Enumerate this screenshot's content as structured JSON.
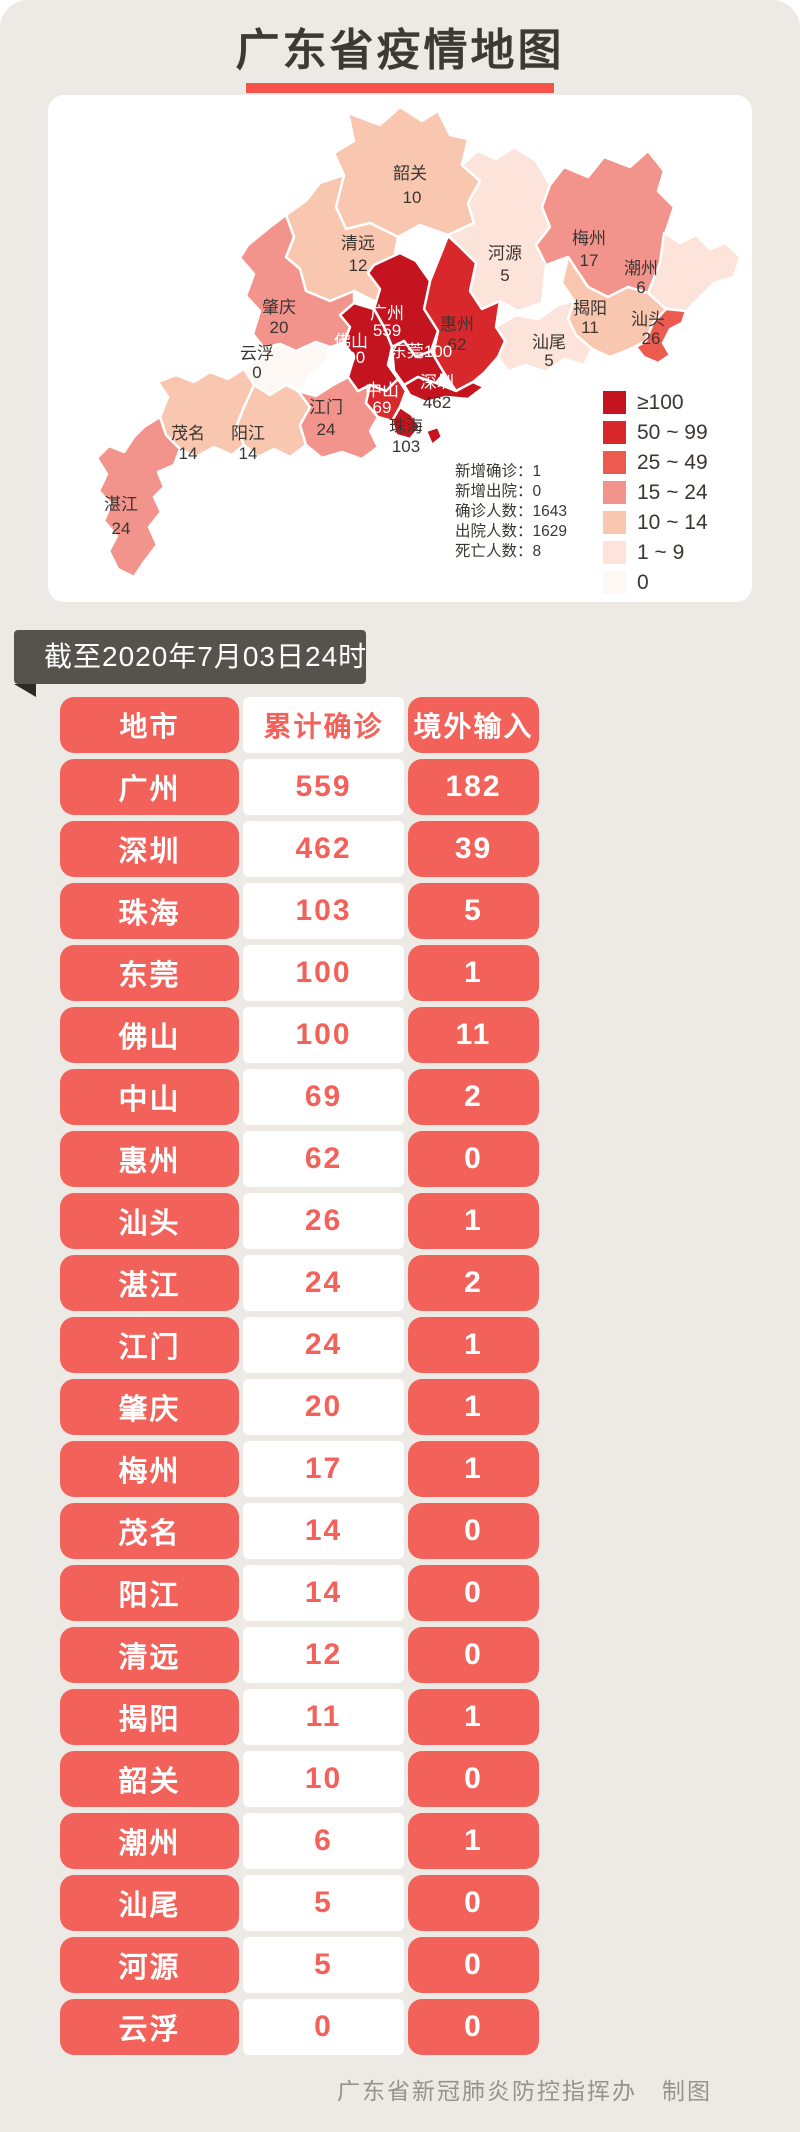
{
  "page": {
    "title": "广东省疫情地图",
    "banner": "截至2020年7月03日24时",
    "footer": "广东省新冠肺炎防控指挥办　制图"
  },
  "colors": {
    "table_red": "#f2615a",
    "title_underline": "#f4524a",
    "banner_bg": "#56534d"
  },
  "chart_data": {
    "type": "choropleth",
    "title": "广东省疫情地图",
    "as_of": "截至2020年7月03日24时",
    "legend": [
      {
        "label": "≥100",
        "color": "#c3141f",
        "min": 100
      },
      {
        "label": "50 ~ 99",
        "color": "#d8282b",
        "min": 50
      },
      {
        "label": "25 ~ 49",
        "color": "#ec5a50",
        "min": 25
      },
      {
        "label": "15 ~ 24",
        "color": "#f3948c",
        "min": 15
      },
      {
        "label": "10 ~ 14",
        "color": "#f9c6b0",
        "min": 10
      },
      {
        "label": "1 ~ 9",
        "color": "#fce4da",
        "min": 1
      },
      {
        "label": "0",
        "color": "#fdf8f4",
        "min": 0
      }
    ],
    "stats": [
      {
        "label": "新增确诊",
        "value": "1"
      },
      {
        "label": "新增出院",
        "value": "0"
      },
      {
        "label": "确诊人数",
        "value": "1643"
      },
      {
        "label": "出院人数",
        "value": "1629"
      },
      {
        "label": "死亡人数",
        "value": "8"
      }
    ],
    "table_headers": [
      "地市",
      "累计确诊",
      "境外输入"
    ],
    "cities": [
      {
        "name": "广州",
        "confirmed": 559,
        "imported": 182
      },
      {
        "name": "深圳",
        "confirmed": 462,
        "imported": 39
      },
      {
        "name": "珠海",
        "confirmed": 103,
        "imported": 5
      },
      {
        "name": "东莞",
        "confirmed": 100,
        "imported": 1
      },
      {
        "name": "佛山",
        "confirmed": 100,
        "imported": 11
      },
      {
        "name": "中山",
        "confirmed": 69,
        "imported": 2
      },
      {
        "name": "惠州",
        "confirmed": 62,
        "imported": 0
      },
      {
        "name": "汕头",
        "confirmed": 26,
        "imported": 1
      },
      {
        "name": "湛江",
        "confirmed": 24,
        "imported": 2
      },
      {
        "name": "江门",
        "confirmed": 24,
        "imported": 1
      },
      {
        "name": "肇庆",
        "confirmed": 20,
        "imported": 1
      },
      {
        "name": "梅州",
        "confirmed": 17,
        "imported": 1
      },
      {
        "name": "茂名",
        "confirmed": 14,
        "imported": 0
      },
      {
        "name": "阳江",
        "confirmed": 14,
        "imported": 0
      },
      {
        "name": "清远",
        "confirmed": 12,
        "imported": 0
      },
      {
        "name": "揭阳",
        "confirmed": 11,
        "imported": 1
      },
      {
        "name": "韶关",
        "confirmed": 10,
        "imported": 0
      },
      {
        "name": "潮州",
        "confirmed": 6,
        "imported": 1
      },
      {
        "name": "汕尾",
        "confirmed": 5,
        "imported": 0
      },
      {
        "name": "河源",
        "confirmed": 5,
        "imported": 0
      },
      {
        "name": "云浮",
        "confirmed": 0,
        "imported": 0
      }
    ]
  }
}
